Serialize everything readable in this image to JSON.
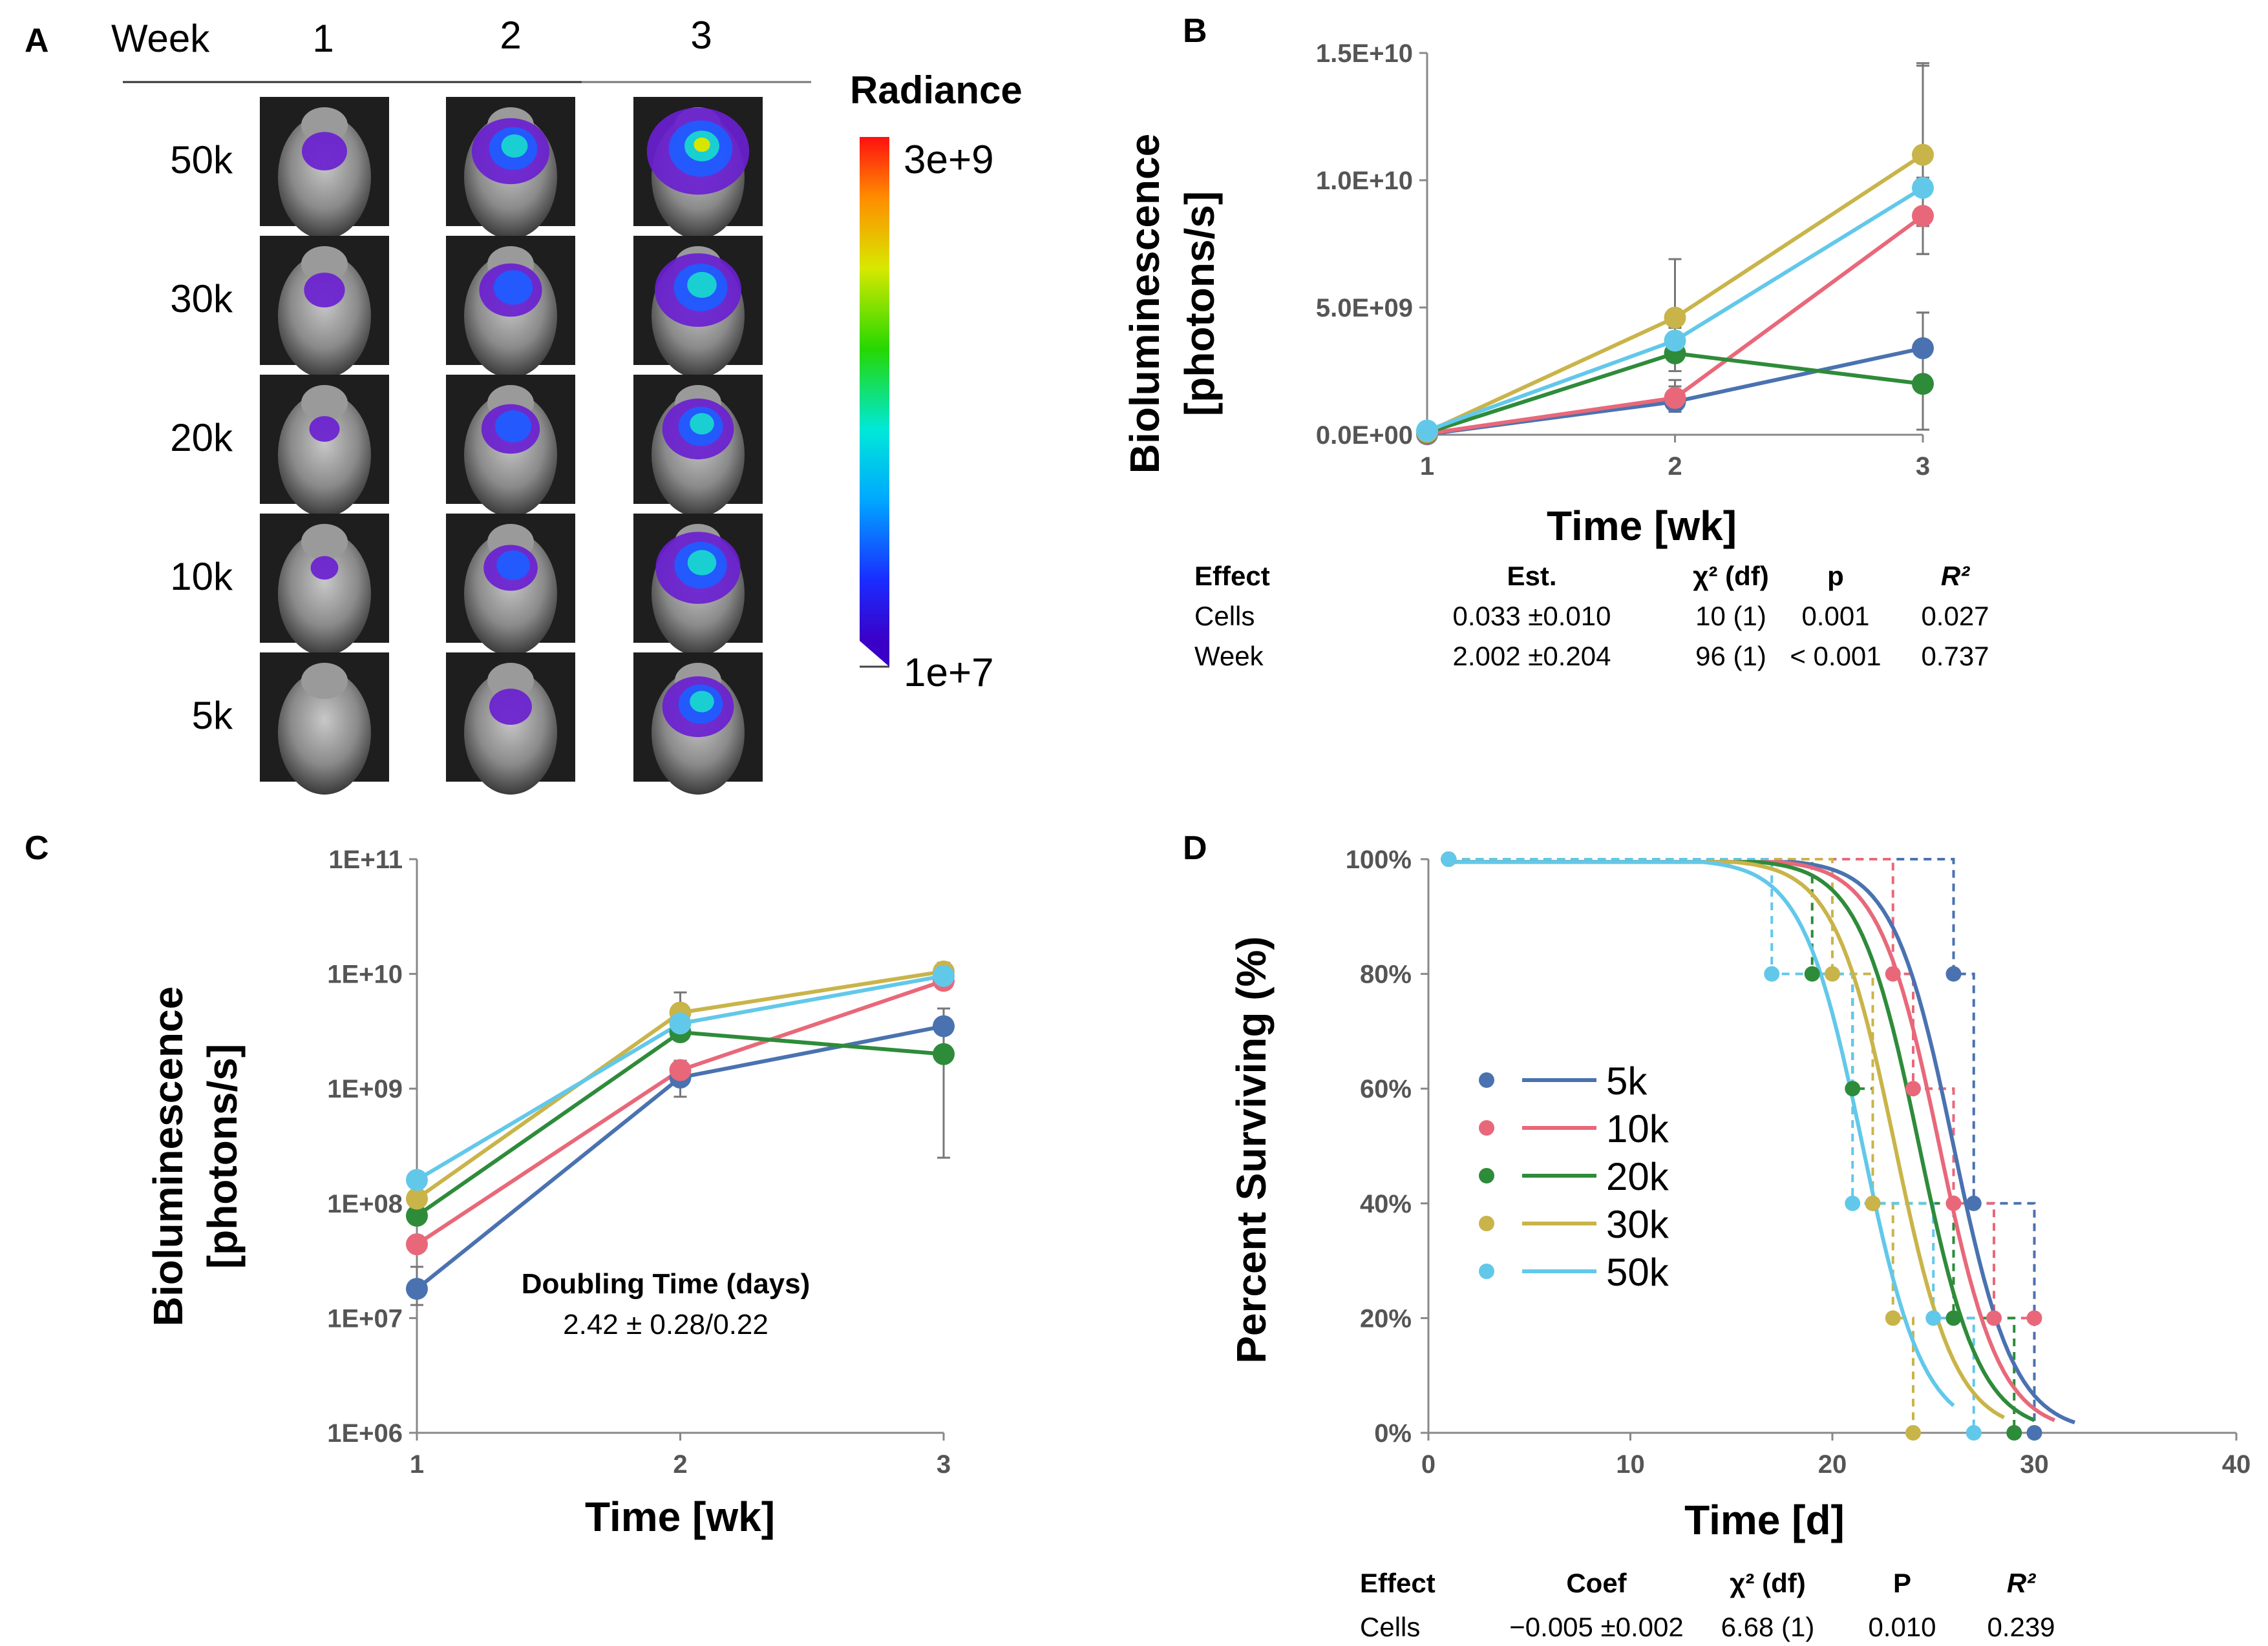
{
  "colors": {
    "5k": "#4a72b0",
    "10k": "#e8687a",
    "20k": "#2e8b3a",
    "30k": "#c9b44a",
    "50k": "#62c8ea",
    "axis": "#888888",
    "errbar": "#777777"
  },
  "panel_a": {
    "letter": "A",
    "week_label": "Week",
    "weeks": [
      "1",
      "2",
      "3"
    ],
    "rows": [
      "50k",
      "30k",
      "20k",
      "10k",
      "5k"
    ],
    "tumor_intensity": [
      [
        0.25,
        0.62,
        0.9
      ],
      [
        0.2,
        0.45,
        0.72
      ],
      [
        0.08,
        0.4,
        0.55
      ],
      [
        0.05,
        0.35,
        0.7
      ],
      [
        0.0,
        0.22,
        0.55
      ]
    ],
    "colorbar": {
      "title": "Radiance",
      "max_label": "3e+9",
      "min_label": "1e+7"
    }
  },
  "panel_b": {
    "letter": "B",
    "table": {
      "headers": [
        "Effect",
        "Est.",
        "χ² (df)",
        "p",
        "R²"
      ],
      "rows": [
        [
          "Cells",
          "0.033 ±0.010",
          "10 (1)",
          "0.001",
          "0.027"
        ],
        [
          "Week",
          "2.002 ±0.204",
          "96 (1)",
          "< 0.001",
          "0.737"
        ]
      ]
    }
  },
  "panel_c": {
    "letter": "C",
    "annotation_title": "Doubling Time (days)",
    "annotation_value": "2.42 ± 0.28/0.22"
  },
  "panel_d": {
    "letter": "D",
    "table": {
      "headers": [
        "Effect",
        "Coef",
        "χ² (df)",
        "P",
        "R²"
      ],
      "rows": [
        [
          "Cells",
          "−0.005 ±0.002",
          "6.68 (1)",
          "0.010",
          "0.239"
        ]
      ]
    }
  },
  "chart_data": [
    {
      "id": "B",
      "type": "line",
      "title": "",
      "xlabel": "Time [wk]",
      "ylabel": "Bioluminescence [photons/s]",
      "x": [
        1,
        2,
        3
      ],
      "xticks": [
        "1",
        "2",
        "3"
      ],
      "ylim": [
        0,
        15000000000
      ],
      "yticks": [
        "0.0E+00",
        "5.0E+09",
        "1.0E+10",
        "1.5E+10"
      ],
      "ytick_values": [
        0,
        5000000000,
        10000000000,
        15000000000
      ],
      "series": [
        {
          "name": "5k",
          "values": [
            20000000,
            1300000000,
            3400000000
          ],
          "err_hi": [
            0,
            600000000,
            1400000000
          ],
          "err_lo": [
            0,
            400000000,
            1200000000
          ]
        },
        {
          "name": "10k",
          "values": [
            45000000,
            1450000000,
            8600000000
          ],
          "err_hi": [
            0,
            700000000,
            1500000000
          ],
          "err_lo": [
            0,
            500000000,
            1500000000
          ]
        },
        {
          "name": "20k",
          "values": [
            80000000,
            3200000000,
            2000000000
          ],
          "err_hi": [
            0,
            700000000,
            2800000000
          ],
          "err_lo": [
            0,
            700000000,
            1800000000
          ]
        },
        {
          "name": "30k",
          "values": [
            110000000,
            4600000000,
            11000000000
          ],
          "err_hi": [
            0,
            2300000000,
            3600000000
          ],
          "err_lo": [
            0,
            1100000000,
            2800000000
          ]
        },
        {
          "name": "50k",
          "values": [
            165000000,
            3700000000,
            9700000000
          ],
          "err_hi": [
            0,
            500000000,
            4800000000
          ],
          "err_lo": [
            0,
            700000000,
            2600000000
          ]
        }
      ]
    },
    {
      "id": "C",
      "type": "line",
      "yscale": "log",
      "title": "",
      "xlabel": "Time [wk]",
      "ylabel": "Bioluminescence [photons/s]",
      "x": [
        1,
        2,
        3
      ],
      "xticks": [
        "1",
        "2",
        "3"
      ],
      "ylim": [
        1000000,
        100000000000
      ],
      "yticks": [
        "1E+06",
        "1E+07",
        "1E+08",
        "1E+09",
        "1E+10",
        "1E+11"
      ],
      "ytick_values": [
        1000000,
        10000000,
        100000000,
        1000000000,
        10000000000,
        100000000000
      ],
      "series": [
        {
          "name": "5k",
          "values": [
            18000000,
            1250000000,
            3500000000
          ],
          "err_hi": [
            10000000,
            500000000,
            1500000000
          ],
          "err_lo": [
            5000000,
            400000000,
            1200000000
          ]
        },
        {
          "name": "10k",
          "values": [
            44000000,
            1450000000,
            8700000000
          ],
          "err_hi": [
            0,
            0,
            0
          ],
          "err_lo": [
            0,
            0,
            0
          ]
        },
        {
          "name": "20k",
          "values": [
            78000000,
            3100000000,
            2000000000
          ],
          "err_hi": [
            0,
            0,
            0
          ],
          "err_lo": [
            0,
            0,
            1750000000
          ]
        },
        {
          "name": "30k",
          "values": [
            110000000,
            4600000000,
            10500000000
          ],
          "err_hi": [
            0,
            2300000000,
            2000000000
          ],
          "err_lo": [
            0,
            0,
            0
          ]
        },
        {
          "name": "50k",
          "values": [
            160000000,
            3700000000,
            9600000000
          ],
          "err_hi": [
            0,
            0,
            0
          ],
          "err_lo": [
            0,
            0,
            0
          ]
        }
      ]
    },
    {
      "id": "D",
      "type": "line",
      "title": "",
      "xlabel": "Time [d]",
      "ylabel": "Percent Surviving (%)",
      "xlim": [
        0,
        40
      ],
      "xticks": [
        "0",
        "10",
        "20",
        "30",
        "40"
      ],
      "xtick_values": [
        0,
        10,
        20,
        30,
        40
      ],
      "ylim": [
        0,
        100
      ],
      "yticks": [
        "0%",
        "20%",
        "40%",
        "60%",
        "80%",
        "100%"
      ],
      "ytick_values": [
        0,
        20,
        40,
        60,
        80,
        100
      ],
      "legend": [
        "5k",
        "10k",
        "20k",
        "30k",
        "50k"
      ],
      "km_steps": [
        {
          "name": "5k",
          "times": [
            1,
            26,
            27,
            30
          ],
          "surv": [
            100,
            80,
            40,
            0
          ]
        },
        {
          "name": "10k",
          "times": [
            1,
            23,
            24,
            26,
            28,
            30
          ],
          "surv": [
            100,
            80,
            60,
            40,
            20,
            20
          ]
        },
        {
          "name": "20k",
          "times": [
            1,
            19,
            21,
            22,
            26,
            29
          ],
          "surv": [
            100,
            80,
            60,
            40,
            20,
            0
          ]
        },
        {
          "name": "30k",
          "times": [
            1,
            20,
            22,
            23,
            24
          ],
          "surv": [
            100,
            80,
            40,
            20,
            0
          ]
        },
        {
          "name": "50k",
          "times": [
            1,
            17,
            21,
            25,
            27
          ],
          "surv": [
            100,
            80,
            40,
            20,
            0
          ]
        }
      ],
      "fit_curves": [
        {
          "name": "5k",
          "midpoint": 26.0,
          "end": 32
        },
        {
          "name": "10k",
          "midpoint": 25.3,
          "end": 31
        },
        {
          "name": "20k",
          "midpoint": 24.3,
          "end": 30
        },
        {
          "name": "30k",
          "midpoint": 23.1,
          "end": 28.5
        },
        {
          "name": "50k",
          "midpoint": 21.5,
          "end": 26
        }
      ]
    }
  ]
}
